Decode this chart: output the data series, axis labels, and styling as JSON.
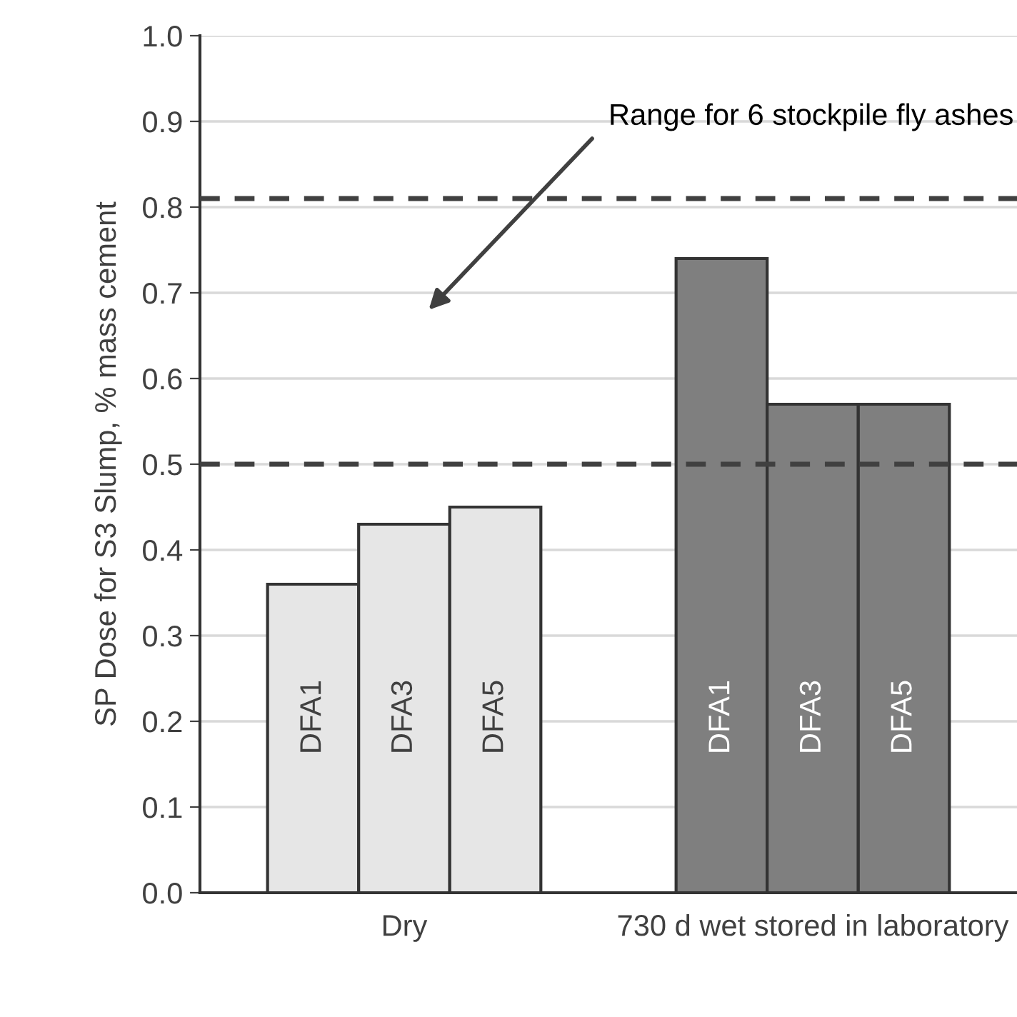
{
  "chart_data": {
    "type": "bar",
    "ylabel": "SP Dose for S3 Slump, % mass cement",
    "categories": [
      "Dry",
      "730 d wet stored in laboratory"
    ],
    "series": [
      {
        "name": "DFA1",
        "colors": [
          "#e6e6e6",
          "#7f7f7f"
        ],
        "values": [
          0.36,
          0.74
        ]
      },
      {
        "name": "DFA3",
        "colors": [
          "#e6e6e6",
          "#7f7f7f"
        ],
        "values": [
          0.43,
          0.57
        ]
      },
      {
        "name": "DFA5",
        "colors": [
          "#e6e6e6",
          "#7f7f7f"
        ],
        "values": [
          0.45,
          0.57
        ]
      }
    ],
    "ylim": [
      0,
      1.0
    ],
    "yticks": [
      {
        "value": 0,
        "label": "0.0"
      },
      {
        "value": 0.1,
        "label": "0.1"
      },
      {
        "value": 0.2,
        "label": "0.2"
      },
      {
        "value": 0.3,
        "label": "0.3"
      },
      {
        "value": 0.4,
        "label": "0.4"
      },
      {
        "value": 0.5,
        "label": "0.5"
      },
      {
        "value": 0.6,
        "label": "0.6"
      },
      {
        "value": 0.7,
        "label": "0.7"
      },
      {
        "value": 0.8,
        "label": "0.8"
      },
      {
        "value": 0.9,
        "label": "0.9"
      },
      {
        "value": 1.0,
        "label": "1.0"
      }
    ],
    "ref_lines": [
      {
        "axis": "y",
        "value": 0.81,
        "label": null,
        "color": "#404040",
        "line_style": "dashed"
      },
      {
        "axis": "y",
        "value": 0.5,
        "label": null,
        "color": "#404040",
        "line_style": "dashed"
      }
    ],
    "annotations": [
      "Range for 6 stockpile fly ashes"
    ],
    "grid": "y",
    "legend": false
  }
}
